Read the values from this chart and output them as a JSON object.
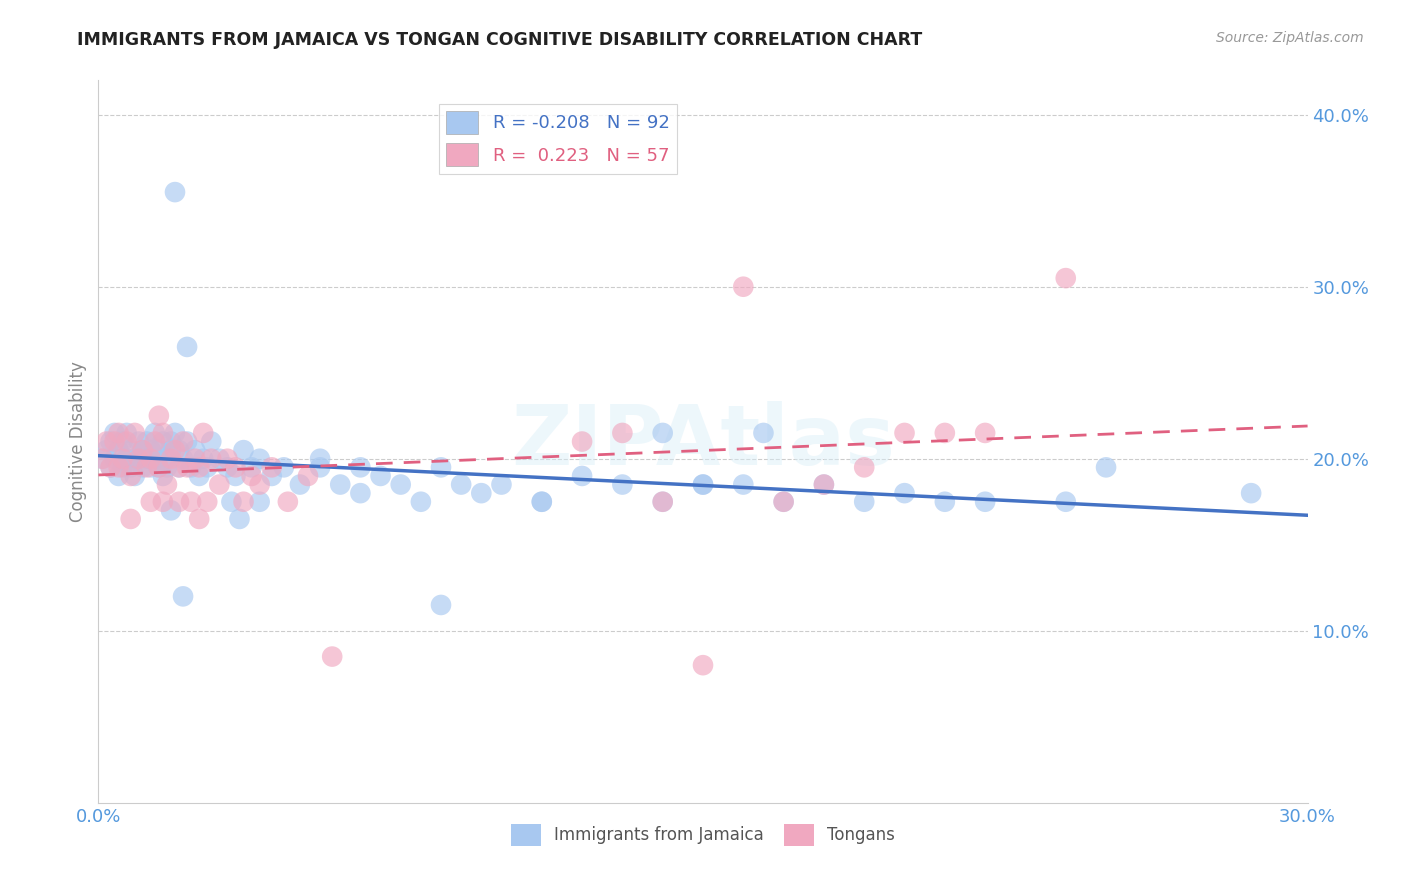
{
  "title": "IMMIGRANTS FROM JAMAICA VS TONGAN COGNITIVE DISABILITY CORRELATION CHART",
  "source": "Source: ZipAtlas.com",
  "ylabel": "Cognitive Disability",
  "xlim": [
    0.0,
    0.3
  ],
  "ylim": [
    0.0,
    0.42
  ],
  "xticks": [
    0.0,
    0.3
  ],
  "yticks": [
    0.1,
    0.2,
    0.3,
    0.4
  ],
  "ytick_labels": [
    "10.0%",
    "20.0%",
    "30.0%",
    "40.0%"
  ],
  "xtick_labels": [
    "0.0%",
    "30.0%"
  ],
  "series1_label": "Immigrants from Jamaica",
  "series2_label": "Tongans",
  "series1_color": "#a8c8f0",
  "series2_color": "#f0a8c0",
  "series1_line_color": "#4472c4",
  "series2_line_color": "#e06080",
  "watermark": "ZIPAtlas",
  "jamaica_x": [
    0.001,
    0.002,
    0.003,
    0.003,
    0.004,
    0.004,
    0.005,
    0.005,
    0.006,
    0.006,
    0.007,
    0.007,
    0.008,
    0.008,
    0.009,
    0.009,
    0.01,
    0.01,
    0.011,
    0.011,
    0.012,
    0.012,
    0.013,
    0.013,
    0.014,
    0.014,
    0.015,
    0.015,
    0.016,
    0.016,
    0.017,
    0.017,
    0.018,
    0.018,
    0.019,
    0.02,
    0.02,
    0.021,
    0.022,
    0.023,
    0.024,
    0.025,
    0.026,
    0.027,
    0.028,
    0.03,
    0.032,
    0.034,
    0.036,
    0.038,
    0.04,
    0.043,
    0.046,
    0.05,
    0.055,
    0.06,
    0.065,
    0.07,
    0.075,
    0.08,
    0.085,
    0.09,
    0.1,
    0.11,
    0.12,
    0.13,
    0.14,
    0.15,
    0.16,
    0.17,
    0.18,
    0.19,
    0.2,
    0.21,
    0.22,
    0.24,
    0.25,
    0.019,
    0.022,
    0.033,
    0.018,
    0.021,
    0.035,
    0.04,
    0.055,
    0.065,
    0.085,
    0.095,
    0.11,
    0.14,
    0.165,
    0.286,
    0.15
  ],
  "jamaica_y": [
    0.2,
    0.205,
    0.195,
    0.21,
    0.2,
    0.215,
    0.19,
    0.205,
    0.195,
    0.21,
    0.2,
    0.215,
    0.195,
    0.205,
    0.2,
    0.19,
    0.21,
    0.2,
    0.205,
    0.195,
    0.2,
    0.21,
    0.195,
    0.205,
    0.2,
    0.215,
    0.195,
    0.205,
    0.19,
    0.21,
    0.2,
    0.195,
    0.205,
    0.21,
    0.215,
    0.195,
    0.205,
    0.2,
    0.21,
    0.195,
    0.205,
    0.19,
    0.2,
    0.195,
    0.21,
    0.2,
    0.195,
    0.19,
    0.205,
    0.195,
    0.2,
    0.19,
    0.195,
    0.185,
    0.2,
    0.185,
    0.195,
    0.19,
    0.185,
    0.175,
    0.195,
    0.185,
    0.185,
    0.175,
    0.19,
    0.185,
    0.175,
    0.185,
    0.185,
    0.175,
    0.185,
    0.175,
    0.18,
    0.175,
    0.175,
    0.175,
    0.195,
    0.355,
    0.265,
    0.175,
    0.17,
    0.12,
    0.165,
    0.175,
    0.195,
    0.18,
    0.115,
    0.18,
    0.175,
    0.215,
    0.215,
    0.18,
    0.185
  ],
  "tongan_x": [
    0.001,
    0.002,
    0.003,
    0.004,
    0.005,
    0.005,
    0.006,
    0.007,
    0.008,
    0.009,
    0.01,
    0.011,
    0.012,
    0.013,
    0.014,
    0.015,
    0.015,
    0.016,
    0.017,
    0.018,
    0.019,
    0.02,
    0.021,
    0.022,
    0.023,
    0.024,
    0.025,
    0.026,
    0.027,
    0.028,
    0.03,
    0.032,
    0.034,
    0.036,
    0.038,
    0.04,
    0.043,
    0.047,
    0.052,
    0.013,
    0.008,
    0.016,
    0.02,
    0.025,
    0.17,
    0.18,
    0.19,
    0.2,
    0.21,
    0.22,
    0.058,
    0.14,
    0.15,
    0.12,
    0.13,
    0.16,
    0.24
  ],
  "tongan_y": [
    0.2,
    0.21,
    0.195,
    0.21,
    0.195,
    0.215,
    0.2,
    0.21,
    0.19,
    0.215,
    0.2,
    0.205,
    0.195,
    0.2,
    0.21,
    0.195,
    0.225,
    0.215,
    0.185,
    0.2,
    0.205,
    0.195,
    0.21,
    0.195,
    0.175,
    0.2,
    0.195,
    0.215,
    0.175,
    0.2,
    0.185,
    0.2,
    0.195,
    0.175,
    0.19,
    0.185,
    0.195,
    0.175,
    0.19,
    0.175,
    0.165,
    0.175,
    0.175,
    0.165,
    0.175,
    0.185,
    0.195,
    0.215,
    0.215,
    0.215,
    0.085,
    0.175,
    0.08,
    0.21,
    0.215,
    0.3,
    0.305
  ]
}
